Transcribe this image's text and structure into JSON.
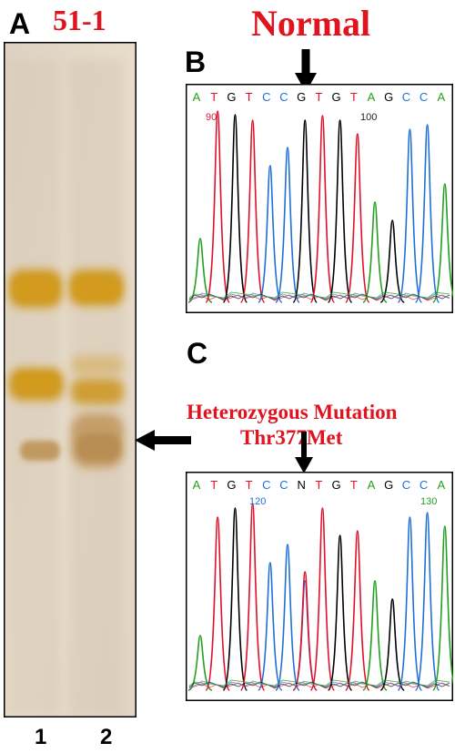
{
  "panel_a": {
    "letter": "A",
    "sample_label": "51-1",
    "lanes": [
      "1",
      "2"
    ]
  },
  "panel_b": {
    "letter": "B",
    "title": "Normal",
    "bases": [
      "A",
      "T",
      "G",
      "T",
      "C",
      "C",
      "G",
      "T",
      "G",
      "T",
      "A",
      "G",
      "C",
      "C",
      "A"
    ],
    "pos_labels": [
      "90",
      "100"
    ]
  },
  "panel_c": {
    "letter": "C",
    "title_line1": "Heterozygous Mutation",
    "title_line2": "Thr377Met",
    "bases": [
      "A",
      "T",
      "G",
      "T",
      "C",
      "C",
      "N",
      "T",
      "G",
      "T",
      "A",
      "G",
      "C",
      "C",
      "A"
    ],
    "pos_labels": [
      "120",
      "130"
    ]
  },
  "colors": {
    "A": "#22a020",
    "T": "#e0102a",
    "G": "#000000",
    "C": "#1f6fd8",
    "N": "#000000",
    "title_red": "#e0141e"
  }
}
